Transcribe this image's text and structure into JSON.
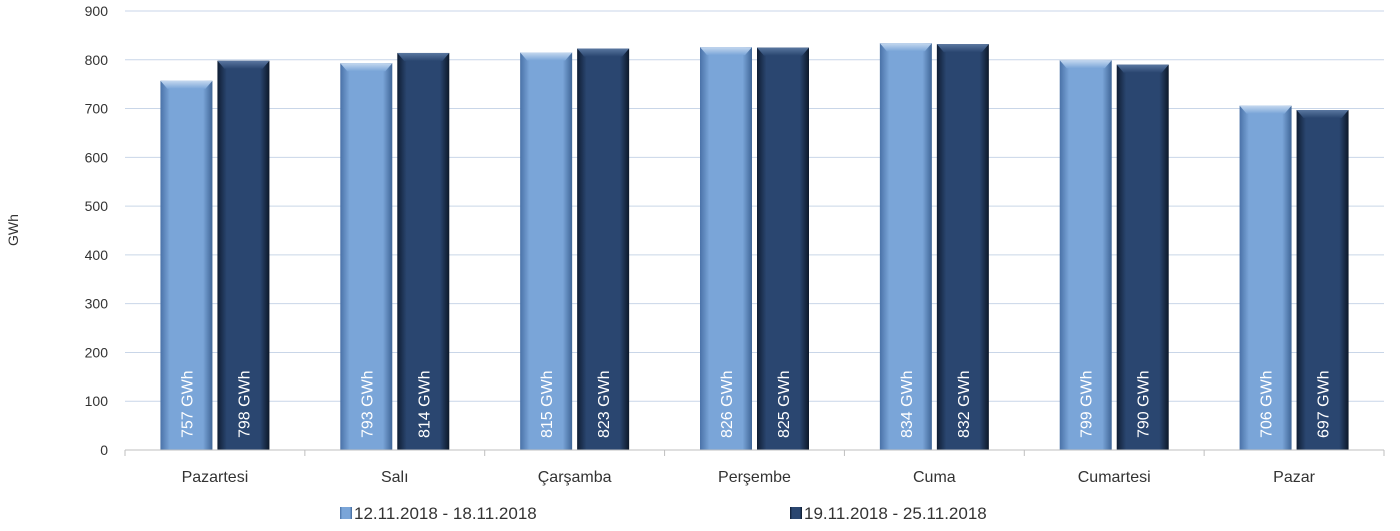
{
  "chart_data": {
    "type": "bar",
    "title": "",
    "xlabel": "",
    "ylabel": "GWh",
    "ylim": [
      0,
      900
    ],
    "yticks": [
      0,
      100,
      200,
      300,
      400,
      500,
      600,
      700,
      800,
      900
    ],
    "grid": true,
    "legend_position": "bottom",
    "categories": [
      "Pazartesi",
      "Salı",
      "Çarşamba",
      "Perşembe",
      "Cuma",
      "Cumartesi",
      "Pazar"
    ],
    "series": [
      {
        "name": "12.11.2018 - 18.11.2018",
        "color": "#6f9bd0",
        "values": [
          757,
          793,
          815,
          826,
          834,
          799,
          706
        ],
        "labels": [
          "757 GWh",
          "793 GWh",
          "815 GWh",
          "826 GWh",
          "834 GWh",
          "799 GWh",
          "706 GWh"
        ]
      },
      {
        "name": "19.11.2018 - 25.11.2018",
        "color": "#24406a",
        "values": [
          798,
          814,
          823,
          825,
          832,
          790,
          697
        ],
        "labels": [
          "798 GWh",
          "814 GWh",
          "823 GWh",
          "825 GWh",
          "832 GWh",
          "790 GWh",
          "697 GWh"
        ]
      }
    ]
  }
}
